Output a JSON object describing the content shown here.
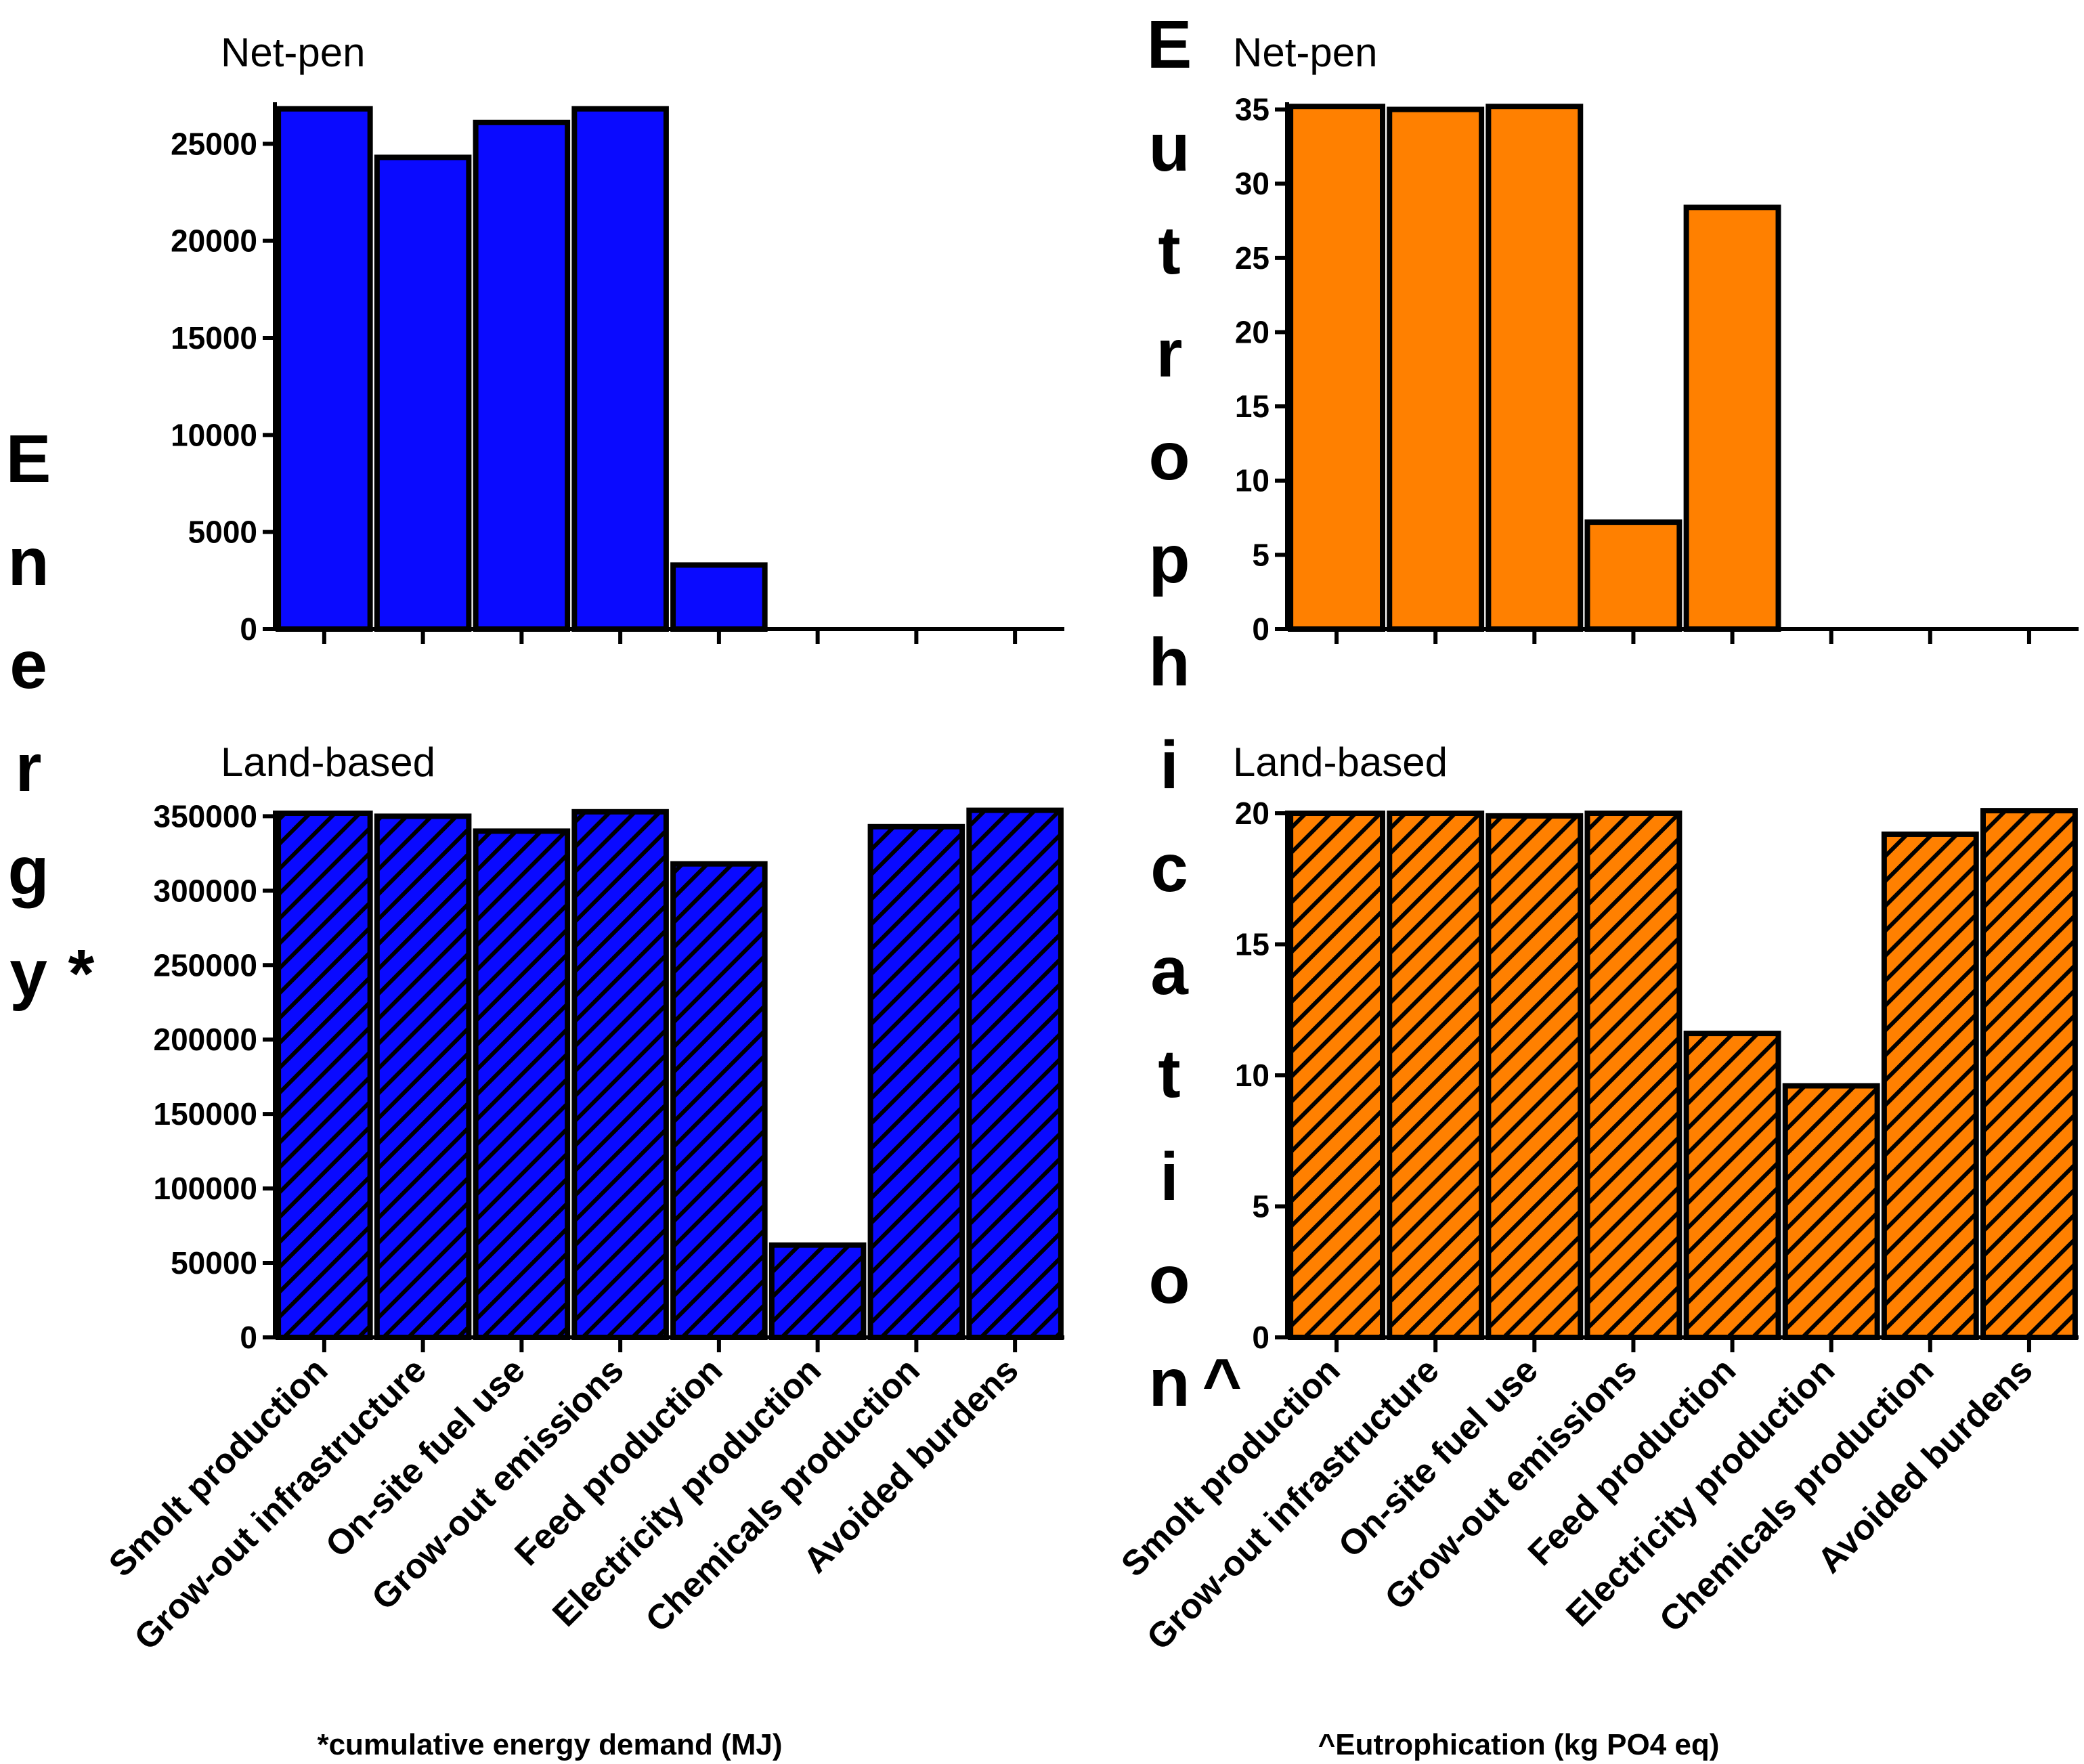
{
  "figure": {
    "energy_label": "Energy*",
    "eutro_label": "Eutrophication^",
    "energy_footnote": "*cumulative energy demand (MJ)",
    "eutro_footnote": "^Eutrophication (kg PO4 eq)"
  },
  "colors": {
    "energy": "#0A0AFF",
    "eutro": "#FF8000",
    "outline": "#000000"
  },
  "chart_data": [
    {
      "id": "energy-netpen",
      "type": "bar",
      "title": "Net-pen",
      "color_key": "energy",
      "hatched": false,
      "categories": [
        "Smolt production",
        "Grow-out infrastructure",
        "On-site fuel use",
        "Grow-out emissions",
        "Feed production",
        "Electricity production",
        "Chemicals production",
        "Avoided burdens"
      ],
      "values": [
        26800,
        24300,
        26100,
        26800,
        3300,
        0,
        0,
        0
      ],
      "ylim": [
        0,
        27000
      ],
      "yticks": [
        0,
        5000,
        10000,
        15000,
        20000,
        25000
      ],
      "show_xlabels": false
    },
    {
      "id": "energy-land",
      "type": "bar",
      "title": "Land-based",
      "color_key": "energy",
      "hatched": true,
      "categories": [
        "Smolt production",
        "Grow-out infrastructure",
        "On-site fuel use",
        "Grow-out emissions",
        "Feed production",
        "Electricity production",
        "Chemicals production",
        "Avoided burdens"
      ],
      "values": [
        352000,
        350000,
        340000,
        353000,
        318000,
        62000,
        343000,
        354000
      ],
      "ylim": [
        0,
        352000
      ],
      "yticks": [
        0,
        50000,
        100000,
        150000,
        200000,
        250000,
        300000,
        350000
      ],
      "show_xlabels": true
    },
    {
      "id": "eutro-netpen",
      "type": "bar",
      "title": "Net-pen",
      "color_key": "eutro",
      "hatched": false,
      "categories": [
        "Smolt production",
        "Grow-out infrastructure",
        "On-site fuel use",
        "Grow-out emissions",
        "Feed production",
        "Electricity production",
        "Chemicals production",
        "Avoided burdens"
      ],
      "values": [
        35.2,
        35.0,
        35.2,
        7.2,
        28.4,
        0,
        0,
        0
      ],
      "ylim": [
        0,
        35.3
      ],
      "yticks": [
        0,
        5,
        10,
        15,
        20,
        25,
        30,
        35
      ],
      "show_xlabels": false
    },
    {
      "id": "eutro-land",
      "type": "bar",
      "title": "Land-based",
      "color_key": "eutro",
      "hatched": true,
      "categories": [
        "Smolt production",
        "Grow-out infrastructure",
        "On-site fuel use",
        "Grow-out emissions",
        "Feed production",
        "Electricity production",
        "Chemicals production",
        "Avoided burdens"
      ],
      "values": [
        20.0,
        20.0,
        19.9,
        20.0,
        11.6,
        9.6,
        19.2,
        20.1
      ],
      "ylim": [
        0,
        20
      ],
      "yticks": [
        0,
        5,
        10,
        15,
        20
      ],
      "show_xlabels": true
    }
  ]
}
